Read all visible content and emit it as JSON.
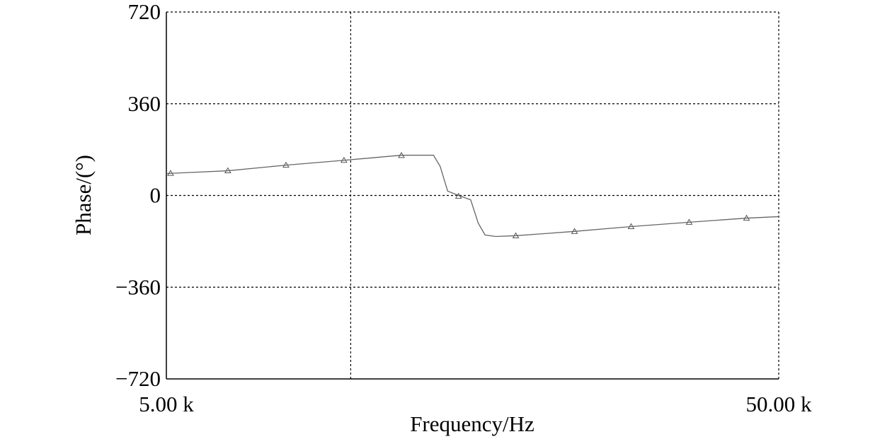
{
  "chart_data": {
    "type": "line",
    "x_label": "Frequency/Hz",
    "y_label": "Phase/(°)",
    "xscale": "log",
    "grid": true,
    "xlim": [
      5000,
      50000
    ],
    "ylim": [
      -720,
      720
    ],
    "xticks": [
      {
        "value": 5000,
        "label": "5.00 k"
      },
      {
        "value": 50000,
        "label": "50.00 k"
      }
    ],
    "xgrid": [
      10000
    ],
    "yticks": [
      {
        "value": -720,
        "label": "−720"
      },
      {
        "value": -360,
        "label": "−360"
      },
      0,
      360,
      720
    ],
    "series": [
      {
        "color": "#666666",
        "marker": "none",
        "x": [
          5000,
          6300,
          7840,
          9750,
          12100,
          13650,
          14000,
          14400,
          15000,
          15700,
          16150,
          16570,
          17250,
          18600,
          23200,
          28700,
          35700,
          44300,
          50000
        ],
        "values": [
          86,
          97,
          119,
          138,
          158,
          158,
          114,
          17,
          0,
          -17,
          -108,
          -155,
          -161,
          -158,
          -141,
          -122,
          -105,
          -89,
          -83
        ]
      },
      {
        "color": "#555555",
        "marker": "triangle",
        "x": [
          5080,
          6300,
          7840,
          9750,
          12100,
          15000,
          18600,
          23200,
          28700,
          35700,
          44300
        ],
        "values": [
          87,
          97,
          119,
          138,
          157,
          -3,
          -158,
          -141,
          -122,
          -105,
          -89
        ]
      }
    ]
  }
}
